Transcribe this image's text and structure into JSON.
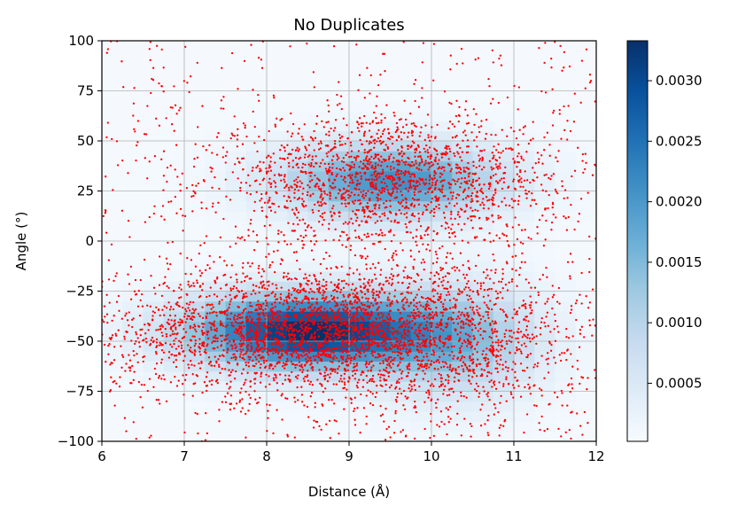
{
  "chart_data": {
    "type": "heatmap",
    "overlay": "scatter",
    "title": "No Duplicates",
    "xlabel": "Distance (Å)",
    "ylabel": "Angle (°)",
    "xlim": [
      6,
      12
    ],
    "ylim": [
      -100,
      100
    ],
    "x_ticks": [
      "6",
      "7",
      "8",
      "9",
      "10",
      "11",
      "12"
    ],
    "y_ticks": [
      "100",
      "75",
      "50",
      "25",
      "0",
      "−25",
      "−50",
      "−75",
      "−100"
    ],
    "grid": true,
    "colormap": "Blues",
    "point_color": "#ff0000",
    "colorbar": {
      "range": [
        2e-05,
        0.00333
      ],
      "ticks": [
        "0.0030",
        "0.0025",
        "0.0020",
        "0.0015",
        "0.0010",
        "0.0005"
      ],
      "tick_values": [
        0.003,
        0.0025,
        0.002,
        0.0015,
        0.001,
        0.0005
      ]
    },
    "clusters": [
      {
        "x_center": 8.5,
        "y_center": -45,
        "x_spread": 1.0,
        "y_spread": 13,
        "peak_density": 0.0033
      },
      {
        "x_center": 9.5,
        "y_center": 30,
        "x_spread": 0.9,
        "y_spread": 13,
        "peak_density": 0.0021
      },
      {
        "x_center": 10.3,
        "y_center": -50,
        "x_spread": 0.7,
        "y_spread": 20,
        "peak_density": 0.0012
      }
    ]
  }
}
